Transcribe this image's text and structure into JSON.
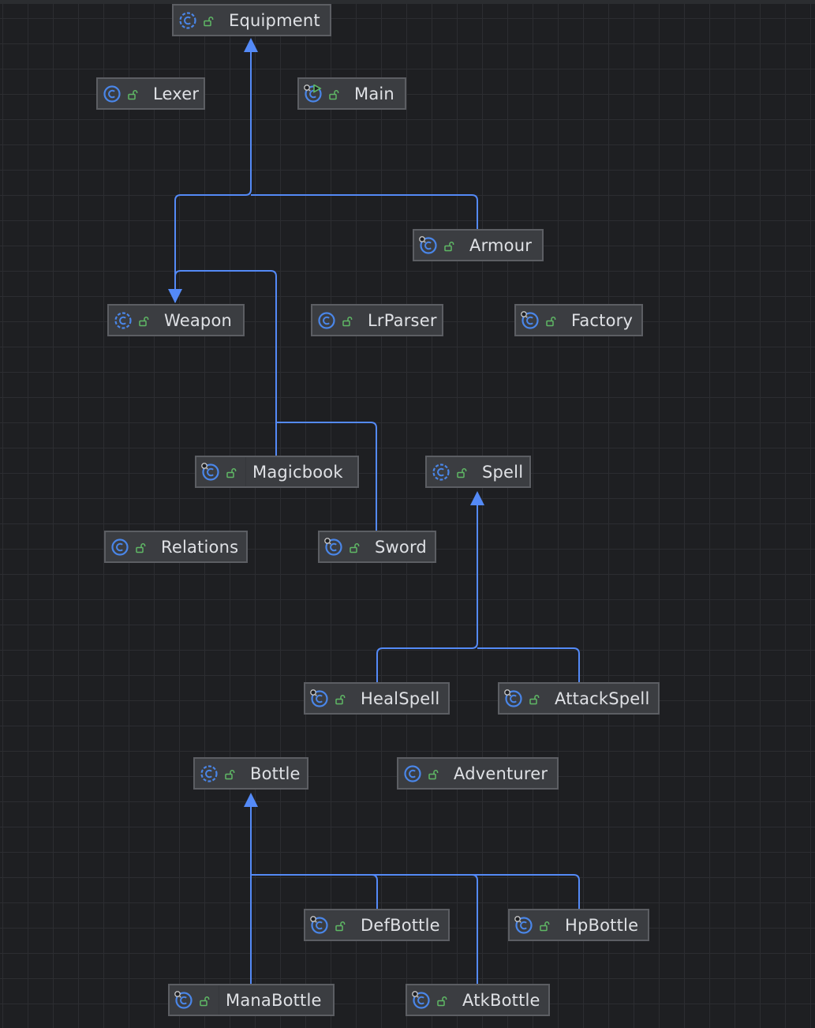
{
  "colors": {
    "background": "#1e1f22",
    "grid": "#2c2d31",
    "edge": "#548af7",
    "class_icon": "#4a86e8",
    "lock_icon": "#5fb865",
    "node_fill": "#3b3d41",
    "node_border": "#5c5e63",
    "text": "#dfe1e5"
  },
  "nodes": [
    {
      "name": "Equipment",
      "icon": "abstract-class-icon"
    },
    {
      "name": "Lexer",
      "icon": "class-icon"
    },
    {
      "name": "Main",
      "icon": "runnable-class-icon"
    },
    {
      "name": "Armour",
      "icon": "final-class-icon"
    },
    {
      "name": "Weapon",
      "icon": "abstract-class-icon"
    },
    {
      "name": "LrParser",
      "icon": "class-icon"
    },
    {
      "name": "Factory",
      "icon": "final-class-icon"
    },
    {
      "name": "Magicbook",
      "icon": "final-class-icon"
    },
    {
      "name": "Spell",
      "icon": "abstract-class-icon"
    },
    {
      "name": "Relations",
      "icon": "class-icon"
    },
    {
      "name": "Sword",
      "icon": "final-class-icon"
    },
    {
      "name": "HealSpell",
      "icon": "final-class-icon"
    },
    {
      "name": "AttackSpell",
      "icon": "final-class-icon"
    },
    {
      "name": "Bottle",
      "icon": "abstract-class-icon"
    },
    {
      "name": "Adventurer",
      "icon": "class-icon"
    },
    {
      "name": "DefBottle",
      "icon": "final-class-icon"
    },
    {
      "name": "HpBottle",
      "icon": "final-class-icon"
    },
    {
      "name": "ManaBottle",
      "icon": "final-class-icon"
    },
    {
      "name": "AtkBottle",
      "icon": "final-class-icon"
    }
  ],
  "edges": [
    {
      "from": "Weapon",
      "to": "Equipment",
      "type": "extends"
    },
    {
      "from": "Armour",
      "to": "Equipment",
      "type": "extends"
    },
    {
      "from": "Magicbook",
      "to": "Weapon",
      "type": "extends"
    },
    {
      "from": "Sword",
      "to": "Weapon",
      "type": "extends"
    },
    {
      "from": "HealSpell",
      "to": "Spell",
      "type": "extends"
    },
    {
      "from": "AttackSpell",
      "to": "Spell",
      "type": "extends"
    },
    {
      "from": "ManaBottle",
      "to": "Bottle",
      "type": "extends"
    },
    {
      "from": "DefBottle",
      "to": "Bottle",
      "type": "extends"
    },
    {
      "from": "AtkBottle",
      "to": "Bottle",
      "type": "extends"
    },
    {
      "from": "HpBottle",
      "to": "Bottle",
      "type": "extends"
    }
  ]
}
